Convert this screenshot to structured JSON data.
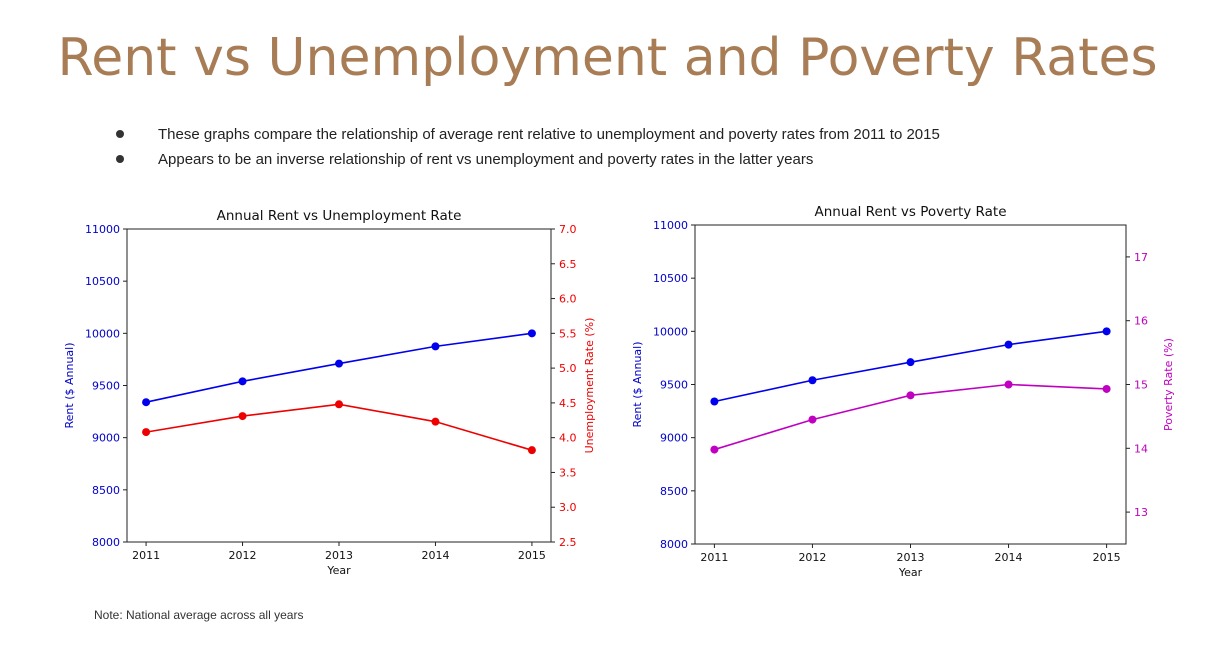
{
  "slide": {
    "title": "Rent vs Unemployment and Poverty Rates",
    "bullets": [
      "These graphs compare the relationship of average rent relative to unemployment and poverty rates from 2011 to 2015",
      "Appears to be an inverse relationship of rent vs unemployment and poverty rates in the latter years"
    ],
    "note": "Note: National average across all years"
  },
  "chart_data": [
    {
      "type": "line",
      "title": "Annual Rent vs Unemployment Rate",
      "xlabel": "Year",
      "categories": [
        "2011",
        "2012",
        "2013",
        "2014",
        "2015"
      ],
      "series": [
        {
          "name": "Rent",
          "axis": "left",
          "color": "#0000ee",
          "values": [
            9340,
            9540,
            9710,
            9875,
            10000
          ]
        },
        {
          "name": "Unemployment Rate",
          "axis": "right",
          "color": "#ee0000",
          "values": [
            4.08,
            4.31,
            4.48,
            4.23,
            3.82
          ]
        }
      ],
      "y_left": {
        "label": "Rent ($ Annual)",
        "range": [
          8000,
          11000
        ],
        "ticks": [
          8000,
          8500,
          9000,
          9500,
          10000,
          10500,
          11000
        ],
        "color": "#0000cc"
      },
      "y_right": {
        "label": "Unemployment Rate (%)",
        "range": [
          2.5,
          7.0
        ],
        "ticks": [
          "2.5",
          "3.0",
          "3.5",
          "4.0",
          "4.5",
          "5.0",
          "5.5",
          "6.0",
          "6.5",
          "7.0"
        ],
        "color": "#ee0000"
      }
    },
    {
      "type": "line",
      "title": "Annual Rent vs Poverty Rate",
      "xlabel": "Year",
      "categories": [
        "2011",
        "2012",
        "2013",
        "2014",
        "2015"
      ],
      "series": [
        {
          "name": "Rent",
          "axis": "left",
          "color": "#0000ee",
          "values": [
            9340,
            9540,
            9710,
            9875,
            10000
          ]
        },
        {
          "name": "Poverty Rate",
          "axis": "right",
          "color": "#c000c0",
          "values": [
            13.98,
            14.45,
            14.83,
            15.0,
            14.93
          ]
        }
      ],
      "y_left": {
        "label": "Rent ($ Annual)",
        "range": [
          8000,
          11000
        ],
        "ticks": [
          8000,
          8500,
          9000,
          9500,
          10000,
          10500,
          11000
        ],
        "color": "#0000cc"
      },
      "y_right": {
        "label": "Poverty Rate (%)",
        "range": [
          12.5,
          17.5
        ],
        "ticks": [
          "13",
          "14",
          "15",
          "16",
          "17"
        ],
        "color": "#c000c0"
      }
    }
  ]
}
